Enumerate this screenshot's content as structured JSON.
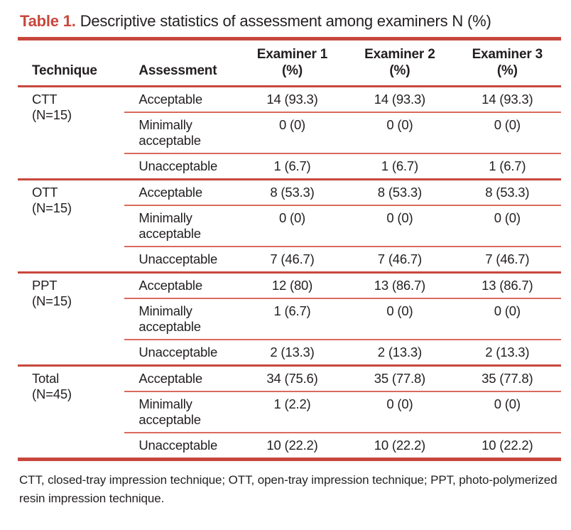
{
  "colors": {
    "accent_red": "#c8473c",
    "thin_red": "#d96a5e",
    "text_color": "#231f20"
  },
  "title": {
    "label": "Table 1.",
    "text": "Descriptive statistics of assessment among examiners N (%)"
  },
  "header": {
    "technique": "Technique",
    "assessment": "Assessment",
    "examiners": [
      {
        "line1": "Examiner 1",
        "line2": "(%)"
      },
      {
        "line1": "Examiner 2",
        "line2": "(%)"
      },
      {
        "line1": "Examiner 3",
        "line2": "(%)"
      }
    ]
  },
  "groups": [
    {
      "technique": "CTT",
      "n": "(N=15)",
      "rows": [
        {
          "assessment": "Acceptable",
          "examiner1": "14 (93.3)",
          "examiner2": "14 (93.3)",
          "examiner3": "14 (93.3)"
        },
        {
          "assessment": "Minimally acceptable",
          "examiner1": "0 (0)",
          "examiner2": "0 (0)",
          "examiner3": "0 (0)"
        },
        {
          "assessment": "Unacceptable",
          "examiner1": "1 (6.7)",
          "examiner2": "1 (6.7)",
          "examiner3": "1 (6.7)"
        }
      ]
    },
    {
      "technique": "OTT",
      "n": "(N=15)",
      "rows": [
        {
          "assessment": "Acceptable",
          "examiner1": "8 (53.3)",
          "examiner2": "8 (53.3)",
          "examiner3": "8 (53.3)"
        },
        {
          "assessment": "Minimally acceptable",
          "examiner1": "0 (0)",
          "examiner2": "0 (0)",
          "examiner3": "0 (0)"
        },
        {
          "assessment": "Unacceptable",
          "examiner1": "7 (46.7)",
          "examiner2": "7 (46.7)",
          "examiner3": "7 (46.7)"
        }
      ]
    },
    {
      "technique": "PPT",
      "n": "(N=15)",
      "rows": [
        {
          "assessment": "Acceptable",
          "examiner1": "12 (80)",
          "examiner2": "13 (86.7)",
          "examiner3": "13 (86.7)"
        },
        {
          "assessment": "Minimally acceptable",
          "examiner1": "1 (6.7)",
          "examiner2": "0 (0)",
          "examiner3": "0 (0)"
        },
        {
          "assessment": "Unacceptable",
          "examiner1": "2 (13.3)",
          "examiner2": "2 (13.3)",
          "examiner3": "2 (13.3)"
        }
      ]
    },
    {
      "technique": "Total",
      "n": "(N=45)",
      "rows": [
        {
          "assessment": "Acceptable",
          "examiner1": "34 (75.6)",
          "examiner2": "35 (77.8)",
          "examiner3": "35 (77.8)"
        },
        {
          "assessment": "Minimally acceptable",
          "examiner1": "1 (2.2)",
          "examiner2": "0 (0)",
          "examiner3": "0 (0)"
        },
        {
          "assessment": "Unacceptable",
          "examiner1": "10 (22.2)",
          "examiner2": "10 (22.2)",
          "examiner3": "10 (22.2)"
        }
      ]
    }
  ],
  "footnote": "CTT, closed-tray impression technique; OTT, open-tray impression technique; PPT, photo-polymerized resin impression technique."
}
